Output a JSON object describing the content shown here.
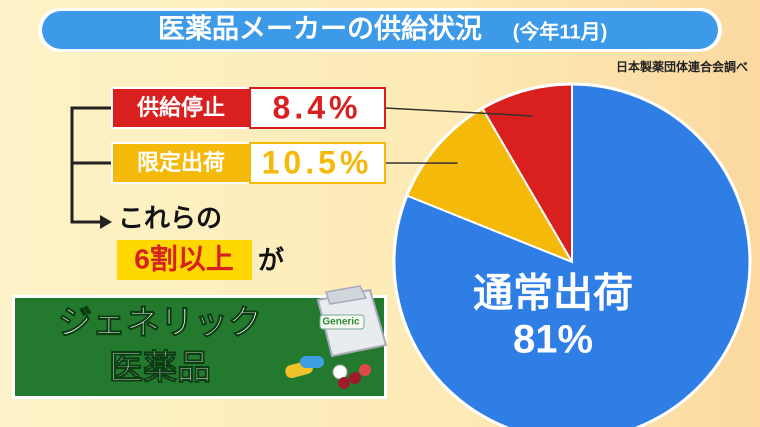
{
  "chart_data": {
    "type": "pie",
    "title": "医薬品メーカーの供給状況",
    "subtitle": "(今年11月)",
    "source": "日本製薬団体連合会調べ",
    "categories": [
      "供給停止",
      "限定出荷",
      "通常出荷"
    ],
    "values": [
      8.4,
      10.5,
      81
    ],
    "value_labels": [
      "8.4%",
      "10.5%",
      "81%"
    ],
    "colors": [
      "#d9201f",
      "#f5b90a",
      "#2f7ee6"
    ],
    "annotations": [
      "これらの",
      "6割以上",
      "が",
      "ジェネリック",
      "医薬品",
      "Generic"
    ]
  }
}
